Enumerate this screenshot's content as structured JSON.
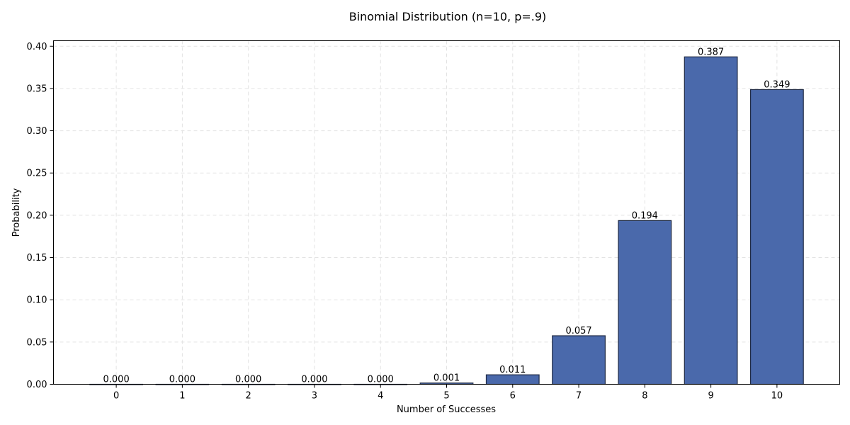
{
  "chart_data": {
    "type": "bar",
    "title": "Binomial Distribution (n=10, p=.9)",
    "xlabel": "Number of Successes",
    "ylabel": "Probability",
    "categories": [
      "0",
      "1",
      "2",
      "3",
      "4",
      "5",
      "6",
      "7",
      "8",
      "9",
      "10"
    ],
    "values": [
      0.0,
      0.0,
      0.0,
      0.0,
      0.0,
      0.0015,
      0.0112,
      0.0574,
      0.1937,
      0.3874,
      0.3487
    ],
    "data_labels": [
      "0.000",
      "0.000",
      "0.000",
      "0.000",
      "0.000",
      "0.001",
      "0.011",
      "0.057",
      "0.194",
      "0.387",
      "0.349"
    ],
    "yticks": [
      0.0,
      0.05,
      0.1,
      0.15,
      0.2,
      0.25,
      0.3,
      0.35,
      0.4
    ],
    "ytick_labels": [
      "0.00",
      "0.05",
      "0.10",
      "0.15",
      "0.20",
      "0.25",
      "0.30",
      "0.35",
      "0.40"
    ],
    "ylim": [
      0,
      0.4065
    ],
    "xlim": [
      -0.95,
      10.95
    ],
    "grid": true,
    "bar_color": "#4a69ab",
    "edge_color": "#1f2a44"
  }
}
